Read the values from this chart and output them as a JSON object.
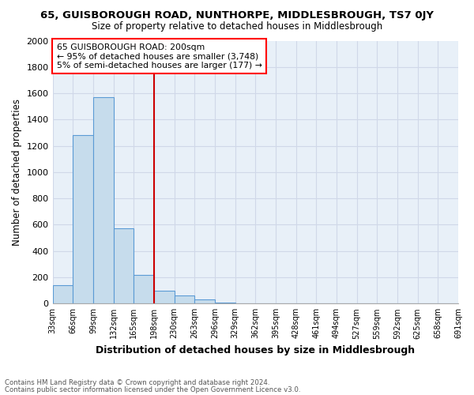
{
  "title": "65, GUISBOROUGH ROAD, NUNTHORPE, MIDDLESBROUGH, TS7 0JY",
  "subtitle": "Size of property relative to detached houses in Middlesbrough",
  "xlabel": "Distribution of detached houses by size in Middlesbrough",
  "ylabel": "Number of detached properties",
  "footnote1": "Contains HM Land Registry data © Crown copyright and database right 2024.",
  "footnote2": "Contains public sector information licensed under the Open Government Licence v3.0.",
  "bin_edges": [
    33,
    66,
    99,
    132,
    165,
    198,
    231,
    264,
    297,
    330,
    363,
    396,
    429,
    462,
    495,
    528,
    561,
    594,
    627,
    660,
    693
  ],
  "bar_heights": [
    140,
    1280,
    1570,
    575,
    220,
    100,
    60,
    30,
    10,
    0,
    0,
    0,
    0,
    0,
    0,
    0,
    0,
    0,
    0,
    0
  ],
  "bar_color": "#c6dcec",
  "bar_edge_color": "#5b9bd5",
  "vline_x": 198,
  "vline_color": "#cc0000",
  "ylim": [
    0,
    2000
  ],
  "yticks": [
    0,
    200,
    400,
    600,
    800,
    1000,
    1200,
    1400,
    1600,
    1800,
    2000
  ],
  "xtick_labels": [
    "33sqm",
    "66sqm",
    "99sqm",
    "132sqm",
    "165sqm",
    "198sqm",
    "230sqm",
    "263sqm",
    "296sqm",
    "329sqm",
    "362sqm",
    "395sqm",
    "428sqm",
    "461sqm",
    "494sqm",
    "527sqm",
    "559sqm",
    "592sqm",
    "625sqm",
    "658sqm",
    "691sqm"
  ],
  "annotation_title": "65 GUISBOROUGH ROAD: 200sqm",
  "annotation_line1": "← 95% of detached houses are smaller (3,748)",
  "annotation_line2": "5% of semi-detached houses are larger (177) →",
  "grid_color": "#d0d8e8",
  "bg_color": "#ffffff",
  "plot_bg_color": "#e8f0f8"
}
